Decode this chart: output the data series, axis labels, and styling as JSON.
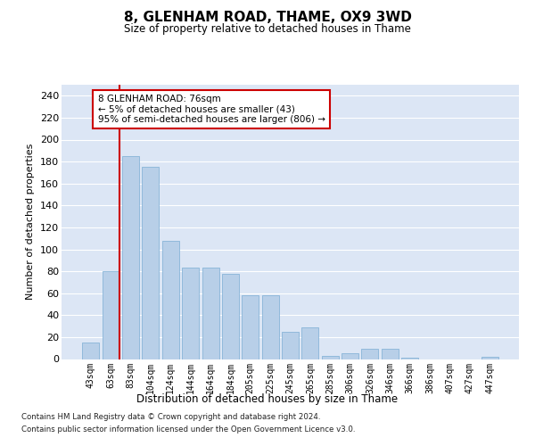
{
  "title1": "8, GLENHAM ROAD, THAME, OX9 3WD",
  "title2": "Size of property relative to detached houses in Thame",
  "xlabel": "Distribution of detached houses by size in Thame",
  "ylabel": "Number of detached properties",
  "categories": [
    "43sqm",
    "63sqm",
    "83sqm",
    "104sqm",
    "124sqm",
    "144sqm",
    "164sqm",
    "184sqm",
    "205sqm",
    "225sqm",
    "245sqm",
    "265sqm",
    "285sqm",
    "306sqm",
    "326sqm",
    "346sqm",
    "366sqm",
    "386sqm",
    "407sqm",
    "427sqm",
    "447sqm"
  ],
  "values": [
    15,
    80,
    185,
    175,
    108,
    83,
    83,
    78,
    58,
    58,
    25,
    29,
    3,
    5,
    9,
    9,
    1,
    0,
    0,
    0,
    2
  ],
  "bar_color": "#b8cfe8",
  "bar_edge_color": "#7aadd4",
  "vline_color": "#cc0000",
  "vline_x": 1.425,
  "annotation_text": "8 GLENHAM ROAD: 76sqm\n← 5% of detached houses are smaller (43)\n95% of semi-detached houses are larger (806) →",
  "annotation_box_facecolor": "#ffffff",
  "annotation_box_edgecolor": "#cc0000",
  "ylim": [
    0,
    250
  ],
  "yticks": [
    0,
    20,
    40,
    60,
    80,
    100,
    120,
    140,
    160,
    180,
    200,
    220,
    240
  ],
  "background_color": "#dce6f5",
  "grid_color": "#ffffff",
  "footer1": "Contains HM Land Registry data © Crown copyright and database right 2024.",
  "footer2": "Contains public sector information licensed under the Open Government Licence v3.0."
}
